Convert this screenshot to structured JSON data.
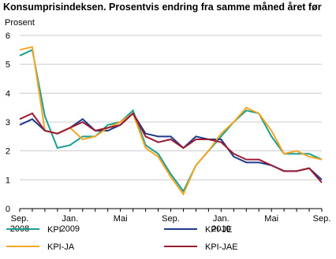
{
  "chart_data": {
    "type": "line",
    "title": "Konsumprisindeksen. Prosentvis endring fra samme måned året før",
    "y_label": "Prosent",
    "categories": [
      "Sep. 2008",
      null,
      null,
      null,
      "Jan. 2009",
      null,
      null,
      null,
      "Mai",
      null,
      null,
      null,
      "Sep.",
      null,
      null,
      null,
      "Jan. 2010",
      null,
      null,
      null,
      "Mai",
      null,
      null,
      null,
      "Sep."
    ],
    "series": [
      {
        "name": "KPI",
        "color": "#1a9e8f",
        "values": [
          5.3,
          5.5,
          3.2,
          2.1,
          2.2,
          2.5,
          2.5,
          2.9,
          3.0,
          3.4,
          2.2,
          1.9,
          1.2,
          0.6,
          1.5,
          2.0,
          2.5,
          3.0,
          3.4,
          3.3,
          2.5,
          1.9,
          1.9,
          1.9,
          1.7
        ]
      },
      {
        "name": "KPI-JE",
        "color": "#1f3a8a",
        "values": [
          2.9,
          3.1,
          2.7,
          2.6,
          2.8,
          3.1,
          2.7,
          2.7,
          2.9,
          3.3,
          2.6,
          2.5,
          2.5,
          2.1,
          2.5,
          2.4,
          2.4,
          1.8,
          1.6,
          1.6,
          1.5,
          1.3,
          1.3,
          1.4,
          1.0
        ]
      },
      {
        "name": "KPI-JA",
        "color": "#f5a623",
        "values": [
          5.5,
          5.6,
          2.7,
          2.6,
          2.8,
          2.4,
          2.5,
          2.8,
          3.0,
          3.3,
          2.1,
          1.8,
          1.1,
          0.5,
          1.5,
          2.0,
          2.6,
          3.0,
          3.5,
          3.3,
          2.7,
          1.9,
          2.0,
          1.8,
          1.7
        ]
      },
      {
        "name": "KPI-JAE",
        "color": "#9b1c31",
        "values": [
          3.1,
          3.3,
          2.7,
          2.6,
          2.8,
          3.0,
          2.7,
          2.8,
          2.9,
          3.3,
          2.5,
          2.3,
          2.4,
          2.1,
          2.4,
          2.4,
          2.3,
          1.9,
          1.7,
          1.7,
          1.5,
          1.3,
          1.3,
          1.4,
          0.9
        ]
      }
    ],
    "ylim": [
      0,
      6
    ],
    "yticks": [
      0,
      1,
      2,
      3,
      4,
      5,
      6
    ],
    "grid": true
  }
}
